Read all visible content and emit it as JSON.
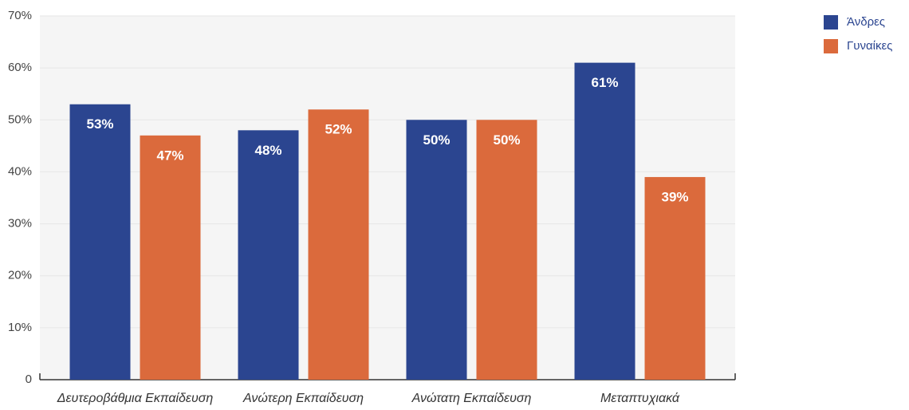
{
  "chart_data": {
    "type": "bar",
    "categories": [
      "Δευτεροβάθμια Εκπαίδευση",
      "Ανώτερη Εκπαίδευση",
      "Ανώτατη Εκπαίδευση",
      "Μεταπτυχιακά"
    ],
    "series": [
      {
        "name": "Άνδρες",
        "color": "#2b4590",
        "values": [
          53,
          48,
          50,
          61
        ],
        "value_labels": [
          "53%",
          "48%",
          "50%",
          "61%"
        ]
      },
      {
        "name": "Γυναίκες",
        "color": "#db6a3c",
        "values": [
          47,
          52,
          50,
          39
        ],
        "value_labels": [
          "47%",
          "52%",
          "50%",
          "39%"
        ]
      }
    ],
    "ylim": [
      0,
      70
    ],
    "yticks": [
      0,
      {
        "value": 10,
        "label": "10%"
      },
      {
        "value": 20,
        "label": "20%"
      },
      {
        "value": 30,
        "label": "30%"
      },
      {
        "value": 40,
        "label": "40%"
      },
      {
        "value": 50,
        "label": "50%"
      },
      {
        "value": 60,
        "label": "60%"
      },
      {
        "value": 70,
        "label": "70%"
      }
    ],
    "grid": true,
    "legend": "top-right"
  }
}
